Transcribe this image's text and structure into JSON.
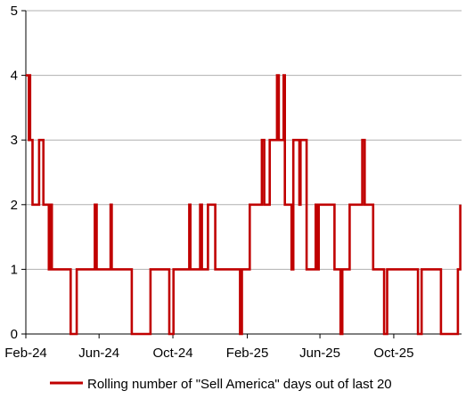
{
  "chart_data": {
    "type": "line",
    "title": "",
    "xlabel": "",
    "ylabel": "",
    "ylim": [
      0,
      5
    ],
    "yticks": [
      "0",
      "1",
      "2",
      "3",
      "4",
      "5"
    ],
    "xticks": [
      {
        "label": "Feb-24",
        "date": "2024-02-01"
      },
      {
        "label": "Jun-24",
        "date": "2024-06-01"
      },
      {
        "label": "Oct-24",
        "date": "2024-10-01"
      },
      {
        "label": "Feb-25",
        "date": "2025-02-01"
      },
      {
        "label": "Jun-25",
        "date": "2025-06-01"
      },
      {
        "label": "Oct-25",
        "date": "2025-10-01"
      }
    ],
    "xlim": [
      "2024-02-01",
      "2026-01-21"
    ],
    "grid": "horizontal",
    "legend_position": "bottom",
    "colors": {
      "series": "#c00000",
      "grid": "#b0b0b0",
      "axis": "#000000"
    },
    "series": [
      {
        "name": "Rolling number of \"Sell America\" days out of last 20",
        "points": [
          [
            "2024-02-01",
            4
          ],
          [
            "2024-02-06",
            4
          ],
          [
            "2024-02-06",
            3
          ],
          [
            "2024-02-07",
            3
          ],
          [
            "2024-02-07",
            4
          ],
          [
            "2024-02-08",
            4
          ],
          [
            "2024-02-08",
            3
          ],
          [
            "2024-02-12",
            3
          ],
          [
            "2024-02-12",
            2
          ],
          [
            "2024-02-23",
            2
          ],
          [
            "2024-02-23",
            3
          ],
          [
            "2024-03-01",
            3
          ],
          [
            "2024-03-01",
            2
          ],
          [
            "2024-03-10",
            2
          ],
          [
            "2024-03-10",
            1
          ],
          [
            "2024-03-13",
            1
          ],
          [
            "2024-03-13",
            2
          ],
          [
            "2024-03-15",
            2
          ],
          [
            "2024-03-15",
            1
          ],
          [
            "2024-04-15",
            1
          ],
          [
            "2024-04-15",
            0
          ],
          [
            "2024-04-25",
            0
          ],
          [
            "2024-04-25",
            1
          ],
          [
            "2024-05-25",
            1
          ],
          [
            "2024-05-25",
            2
          ],
          [
            "2024-05-28",
            2
          ],
          [
            "2024-05-28",
            1
          ],
          [
            "2024-06-20",
            1
          ],
          [
            "2024-06-20",
            2
          ],
          [
            "2024-06-22",
            2
          ],
          [
            "2024-06-22",
            1
          ],
          [
            "2024-07-25",
            1
          ],
          [
            "2024-07-25",
            0
          ],
          [
            "2024-08-25",
            0
          ],
          [
            "2024-08-25",
            1
          ],
          [
            "2024-09-25",
            1
          ],
          [
            "2024-09-25",
            0
          ],
          [
            "2024-10-02",
            0
          ],
          [
            "2024-10-02",
            1
          ],
          [
            "2024-10-28",
            1
          ],
          [
            "2024-10-28",
            2
          ],
          [
            "2024-10-30",
            2
          ],
          [
            "2024-10-30",
            1
          ],
          [
            "2024-11-15",
            1
          ],
          [
            "2024-11-15",
            2
          ],
          [
            "2024-11-18",
            2
          ],
          [
            "2024-11-18",
            1
          ],
          [
            "2024-11-28",
            1
          ],
          [
            "2024-11-28",
            2
          ],
          [
            "2024-12-10",
            2
          ],
          [
            "2024-12-10",
            1
          ],
          [
            "2025-01-20",
            1
          ],
          [
            "2025-01-20",
            0
          ],
          [
            "2025-01-23",
            0
          ],
          [
            "2025-01-23",
            1
          ],
          [
            "2025-02-05",
            1
          ],
          [
            "2025-02-05",
            2
          ],
          [
            "2025-02-25",
            2
          ],
          [
            "2025-02-25",
            3
          ],
          [
            "2025-03-01",
            3
          ],
          [
            "2025-03-01",
            2
          ],
          [
            "2025-03-10",
            2
          ],
          [
            "2025-03-10",
            3
          ],
          [
            "2025-03-22",
            3
          ],
          [
            "2025-03-22",
            4
          ],
          [
            "2025-03-25",
            4
          ],
          [
            "2025-03-25",
            3
          ],
          [
            "2025-04-02",
            3
          ],
          [
            "2025-04-02",
            4
          ],
          [
            "2025-04-04",
            4
          ],
          [
            "2025-04-04",
            2
          ],
          [
            "2025-04-15",
            2
          ],
          [
            "2025-04-15",
            1
          ],
          [
            "2025-04-18",
            1
          ],
          [
            "2025-04-18",
            3
          ],
          [
            "2025-04-28",
            3
          ],
          [
            "2025-04-28",
            2
          ],
          [
            "2025-04-30",
            2
          ],
          [
            "2025-04-30",
            3
          ],
          [
            "2025-05-10",
            3
          ],
          [
            "2025-05-10",
            1
          ],
          [
            "2025-05-25",
            1
          ],
          [
            "2025-05-25",
            2
          ],
          [
            "2025-05-27",
            2
          ],
          [
            "2025-05-27",
            1
          ],
          [
            "2025-05-30",
            1
          ],
          [
            "2025-05-30",
            2
          ],
          [
            "2025-06-25",
            2
          ],
          [
            "2025-06-25",
            1
          ],
          [
            "2025-07-05",
            1
          ],
          [
            "2025-07-05",
            0
          ],
          [
            "2025-07-08",
            0
          ],
          [
            "2025-07-08",
            1
          ],
          [
            "2025-07-20",
            1
          ],
          [
            "2025-07-20",
            2
          ],
          [
            "2025-08-10",
            2
          ],
          [
            "2025-08-10",
            3
          ],
          [
            "2025-08-14",
            3
          ],
          [
            "2025-08-14",
            2
          ],
          [
            "2025-08-28",
            2
          ],
          [
            "2025-08-28",
            1
          ],
          [
            "2025-09-15",
            1
          ],
          [
            "2025-09-15",
            0
          ],
          [
            "2025-09-20",
            0
          ],
          [
            "2025-09-20",
            1
          ],
          [
            "2025-11-10",
            1
          ],
          [
            "2025-11-10",
            0
          ],
          [
            "2025-11-16",
            0
          ],
          [
            "2025-11-16",
            1
          ],
          [
            "2025-12-18",
            1
          ],
          [
            "2025-12-18",
            0
          ],
          [
            "2026-01-15",
            0
          ],
          [
            "2026-01-15",
            1
          ],
          [
            "2026-01-19",
            1
          ],
          [
            "2026-01-19",
            2
          ]
        ]
      }
    ]
  }
}
